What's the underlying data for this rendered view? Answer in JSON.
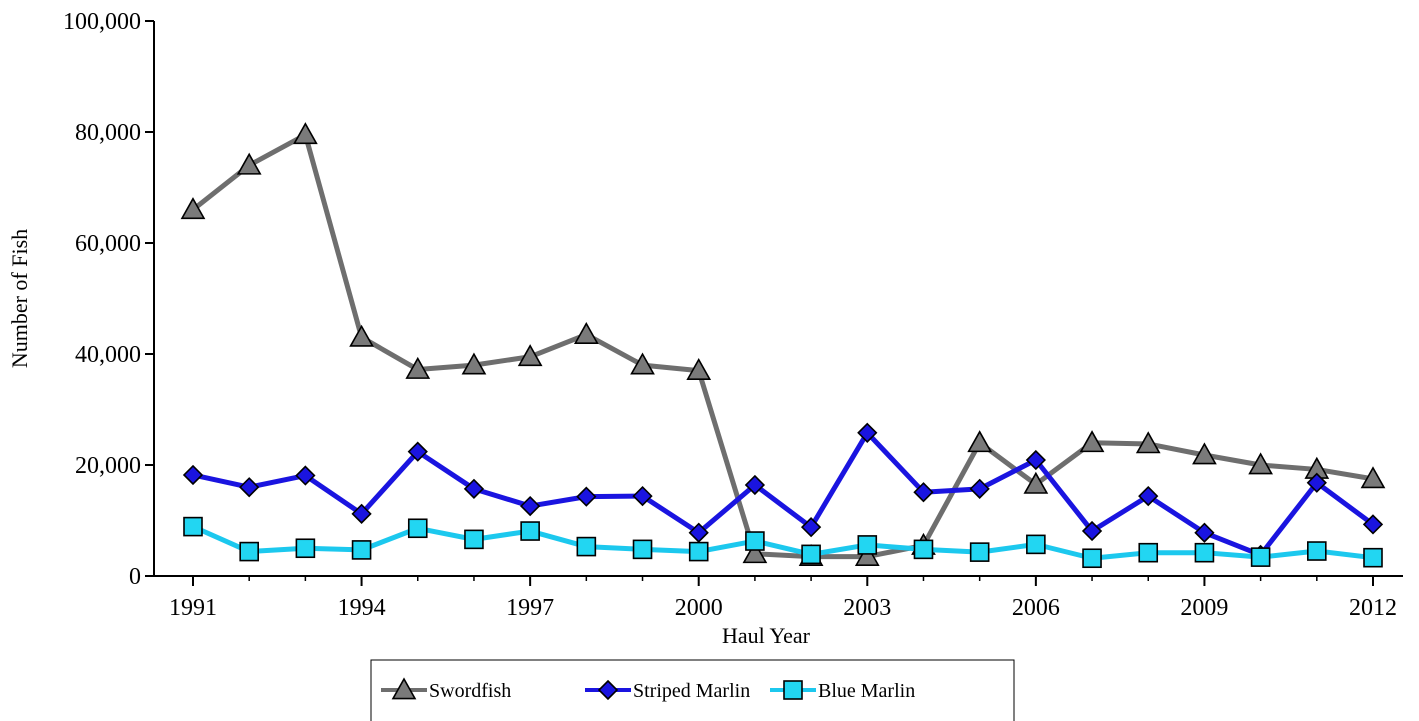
{
  "chart_data": {
    "type": "line",
    "title": "",
    "xlabel": "Haul Year",
    "ylabel": "Number of Fish",
    "x": [
      1991,
      1992,
      1993,
      1994,
      1995,
      1996,
      1997,
      1998,
      1999,
      2000,
      2001,
      2002,
      2003,
      2004,
      2005,
      2006,
      2007,
      2008,
      2009,
      2010,
      2011,
      2012
    ],
    "xlim": [
      1991,
      2012
    ],
    "ylim": [
      0,
      100000
    ],
    "x_ticks": [
      1991,
      1994,
      1997,
      2000,
      2003,
      2006,
      2009,
      2012
    ],
    "x_tick_labels": [
      "1991",
      "1994",
      "1997",
      "2000",
      "2003",
      "2006",
      "2009",
      "2012"
    ],
    "y_ticks": [
      0,
      20000,
      40000,
      60000,
      80000,
      100000
    ],
    "y_tick_labels": [
      "0",
      "20,000",
      "40,000",
      "60,000",
      "80,000",
      "100,000"
    ],
    "grid": false,
    "legend_position": "bottom-center",
    "series": [
      {
        "name": "Swordfish",
        "color": "#6e6e6e",
        "marker": "triangle",
        "marker_fill": "#7a7a7a",
        "values": [
          66000,
          74000,
          79500,
          43000,
          37200,
          38000,
          39500,
          43500,
          38000,
          37000,
          4000,
          3500,
          3500,
          5500,
          24000,
          16500,
          24000,
          23800,
          21800,
          20000,
          19200,
          17500
        ]
      },
      {
        "name": "Striped Marlin",
        "color": "#1a14e0",
        "marker": "diamond",
        "marker_fill": "#1a14e0",
        "values": [
          18200,
          16000,
          18100,
          11200,
          22400,
          15700,
          12600,
          14300,
          14400,
          7800,
          16400,
          8800,
          25800,
          15100,
          15700,
          20900,
          8100,
          14400,
          7800,
          3800,
          16800,
          9300
        ]
      },
      {
        "name": "Blue Marlin",
        "color": "#1cc8ee",
        "marker": "square",
        "marker_fill": "#22d6f2",
        "values": [
          8900,
          4400,
          5000,
          4700,
          8600,
          6600,
          8100,
          5300,
          4800,
          4400,
          6300,
          3900,
          5600,
          4800,
          4300,
          5700,
          3200,
          4200,
          4200,
          3400,
          4500,
          3300
        ]
      }
    ]
  }
}
